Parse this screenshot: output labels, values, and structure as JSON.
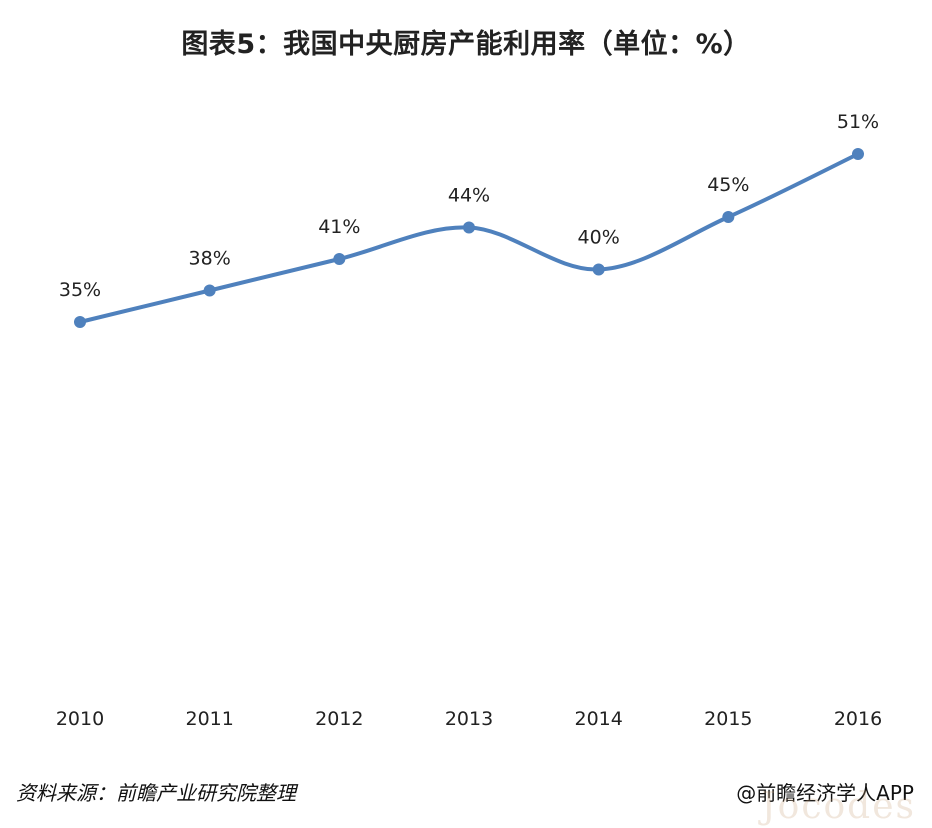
{
  "chart_data": {
    "type": "line",
    "title": "图表5：我国中央厨房产能利用率（单位：%）",
    "categories": [
      "2010",
      "2011",
      "2012",
      "2013",
      "2014",
      "2015",
      "2016"
    ],
    "series": [
      {
        "values": [
          35,
          38,
          41,
          44,
          40,
          45,
          51
        ],
        "labels": [
          "35%",
          "38%",
          "41%",
          "44%",
          "40%",
          "45%",
          "51%"
        ],
        "color": "#4f81bd"
      }
    ],
    "xlabel": "",
    "ylabel": "",
    "smooth": true,
    "grid": false,
    "legend": "none"
  },
  "footer": {
    "source": "资料来源：前瞻产业研究院整理",
    "brand": "@前瞻经济学人APP"
  },
  "watermark": "Jocodes"
}
